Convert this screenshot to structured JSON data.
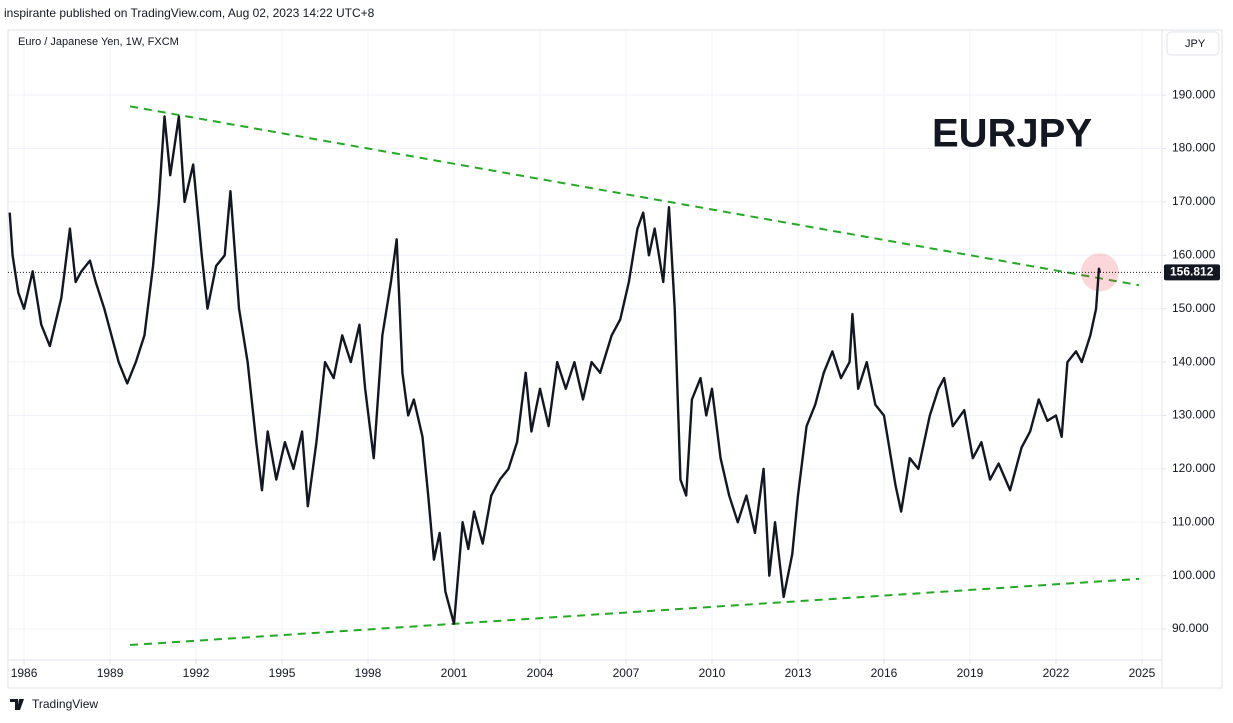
{
  "header": {
    "published": "inspirante published on TradingView.com, Aug 02, 2023 14:22 UTC+8"
  },
  "footer": {
    "brand": "TradingView"
  },
  "chart_data": {
    "type": "line",
    "symbol_info": "Euro / Japanese Yen, 1W, FXCM",
    "currency": "JPY",
    "title": "EURJPY",
    "color": "#131722",
    "x": [
      1985.5,
      1985.6,
      1985.8,
      1986.0,
      1986.3,
      1986.6,
      1986.9,
      1987.3,
      1987.6,
      1987.8,
      1988.0,
      1988.3,
      1988.5,
      1988.8,
      1989.0,
      1989.3,
      1989.6,
      1989.9,
      1990.2,
      1990.5,
      1990.7,
      1990.9,
      1991.1,
      1991.4,
      1991.6,
      1991.9,
      1992.2,
      1992.4,
      1992.7,
      1993.0,
      1993.2,
      1993.5,
      1993.8,
      1994.1,
      1994.3,
      1994.5,
      1994.8,
      1995.1,
      1995.4,
      1995.7,
      1995.9,
      1996.2,
      1996.5,
      1996.8,
      1997.1,
      1997.4,
      1997.7,
      1997.9,
      1998.2,
      1998.5,
      1998.8,
      1999.0,
      1999.2,
      1999.4,
      1999.6,
      1999.9,
      2000.1,
      2000.3,
      2000.5,
      2000.7,
      2000.9,
      2001.0,
      2001.3,
      2001.5,
      2001.7,
      2002.0,
      2002.3,
      2002.6,
      2002.9,
      2003.2,
      2003.5,
      2003.7,
      2004.0,
      2004.3,
      2004.6,
      2004.9,
      2005.2,
      2005.5,
      2005.8,
      2006.1,
      2006.5,
      2006.8,
      2007.1,
      2007.4,
      2007.6,
      2007.8,
      2008.0,
      2008.3,
      2008.5,
      2008.7,
      2008.9,
      2009.1,
      2009.3,
      2009.6,
      2009.8,
      2010.0,
      2010.3,
      2010.6,
      2010.9,
      2011.2,
      2011.5,
      2011.8,
      2012.0,
      2012.2,
      2012.5,
      2012.8,
      2013.0,
      2013.3,
      2013.6,
      2013.9,
      2014.2,
      2014.5,
      2014.8,
      2014.9,
      2015.1,
      2015.4,
      2015.7,
      2016.0,
      2016.4,
      2016.6,
      2016.9,
      2017.2,
      2017.6,
      2017.9,
      2018.1,
      2018.4,
      2018.8,
      2019.1,
      2019.4,
      2019.7,
      2020.0,
      2020.4,
      2020.8,
      2021.1,
      2021.4,
      2021.7,
      2022.0,
      2022.2,
      2022.4,
      2022.7,
      2022.9,
      2023.2,
      2023.4,
      2023.5,
      2023.53
    ],
    "values": [
      168,
      160,
      153,
      150,
      157,
      147,
      143,
      152,
      165,
      155,
      157,
      159,
      155,
      150,
      146,
      140,
      136,
      140,
      145,
      158,
      170,
      186,
      175,
      186,
      170,
      177,
      160,
      150,
      158,
      160,
      172,
      150,
      140,
      125,
      116,
      127,
      118,
      125,
      120,
      127,
      113,
      125,
      140,
      137,
      145,
      140,
      147,
      135,
      122,
      145,
      155,
      163,
      138,
      130,
      133,
      126,
      115,
      103,
      108,
      97,
      93,
      91,
      110,
      105,
      112,
      106,
      115,
      118,
      120,
      125,
      138,
      127,
      135,
      128,
      140,
      135,
      140,
      133,
      140,
      138,
      145,
      148,
      155,
      165,
      168,
      160,
      165,
      155,
      169,
      150,
      118,
      115,
      133,
      137,
      130,
      135,
      122,
      115,
      110,
      115,
      108,
      120,
      100,
      110,
      96,
      104,
      115,
      128,
      132,
      138,
      142,
      137,
      140,
      149,
      135,
      140,
      132,
      130,
      117,
      112,
      122,
      120,
      130,
      135,
      137,
      128,
      131,
      122,
      125,
      118,
      121,
      116,
      124,
      127,
      133,
      129,
      130,
      126,
      140,
      142,
      140,
      145,
      150,
      157.5,
      156.812
    ],
    "trendlines": [
      {
        "color": "#22ab22",
        "x": [
          1989.7,
          2024.9
        ],
        "values": [
          187.9,
          154.4
        ]
      },
      {
        "color": "#22ab22",
        "x": [
          1989.7,
          2024.9
        ],
        "values": [
          87.0,
          99.4
        ]
      }
    ],
    "xlim": [
      1985.44,
      2025.7
    ],
    "ylim": [
      84.2,
      202.2
    ],
    "xticks": [
      1986,
      1989,
      1992,
      1995,
      1998,
      2001,
      2004,
      2007,
      2010,
      2013,
      2016,
      2019,
      2022,
      2025
    ],
    "yticks": [
      {
        "value": 90,
        "label": "90.000"
      },
      {
        "value": 100,
        "label": "100.000"
      },
      {
        "value": 110,
        "label": "110.000"
      },
      {
        "value": 120,
        "label": "120.000"
      },
      {
        "value": 130,
        "label": "130.000"
      },
      {
        "value": 140,
        "label": "140.000"
      },
      {
        "value": 150,
        "label": "150.000"
      },
      {
        "value": 160,
        "label": "160.000"
      },
      {
        "value": 170,
        "label": "170.000"
      },
      {
        "value": 180,
        "label": "180.000"
      },
      {
        "value": 190,
        "label": "190.000"
      }
    ],
    "grid": true
  }
}
